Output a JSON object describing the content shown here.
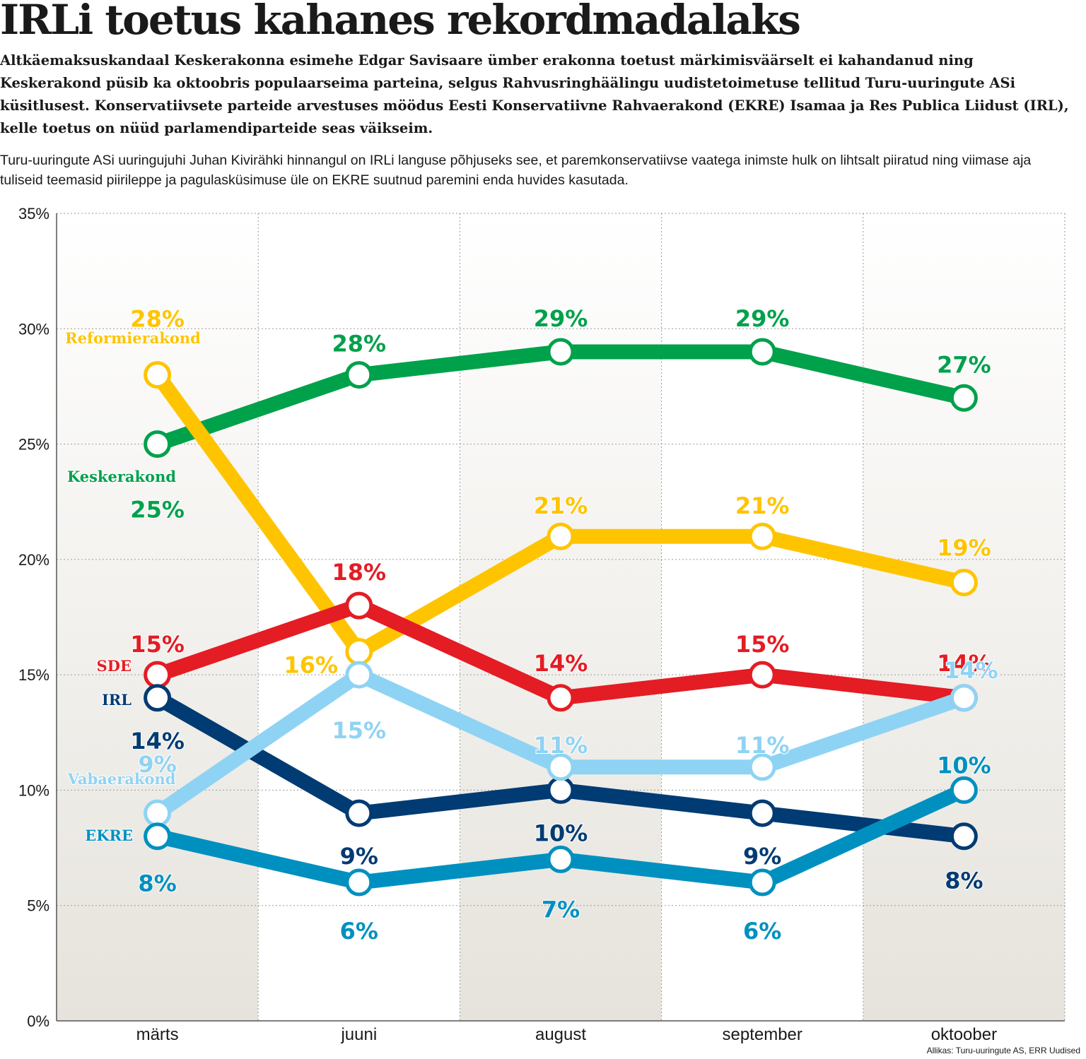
{
  "header": {
    "title": "IRLi toetus kahanes rekordmadalaks",
    "lead": "Altkäemaksuskandaal Keskerakonna esimehe Edgar Savisaare ümber erakonna toetust märkimisväärselt ei kahandanud ning Keskerakond püsib ka oktoobris populaarseima parteina, selgus Rahvusringhäälingu uudistetoimetuse tellitud Turu-uuringute ASi küsitlusest. Konservatiivsete parteide arvestuses möödus Eesti Konservatiivne Rahvaerakond (EKRE) Isamaa ja Res Publica Liidust (IRL), kelle toetus on nüüd parlamendiparteide seas väikseim.",
    "body": "Turu-uuringute ASi uuringujuhi Juhan Kivirähki hinnangul on IRLi languse põhjuseks see, et paremkonservatiivse vaatega inimste hulk on lihtsalt piiratud ning viimase aja tuliseid teemasid piirileppe ja pagulasküsimuse üle on EKRE suutnud paremini enda huvides kasutada."
  },
  "source": "Allikas: Turu-uuringute AS, ERR Uudised",
  "chart_data": {
    "type": "line",
    "categories": [
      "märts",
      "juuni",
      "august",
      "september",
      "oktoober"
    ],
    "ylim": [
      0,
      35
    ],
    "yticks": [
      "0%",
      "5%",
      "10%",
      "15%",
      "20%",
      "25%",
      "30%",
      "35%"
    ],
    "grid": true,
    "series": [
      {
        "name": "Keskerakond",
        "color": "#00a14b",
        "values": [
          25,
          28,
          29,
          29,
          27
        ],
        "labels": [
          "25%",
          "28%",
          "29%",
          "29%",
          "27%"
        ]
      },
      {
        "name": "Reformierakond",
        "color": "#ffc400",
        "values": [
          28,
          16,
          21,
          21,
          19
        ],
        "labels": [
          "28%",
          "16%",
          "21%",
          "21%",
          "19%"
        ]
      },
      {
        "name": "SDE",
        "color": "#e41c24",
        "values": [
          15,
          18,
          14,
          15,
          14
        ],
        "labels": [
          "15%",
          "18%",
          "14%",
          "15%",
          "14%"
        ]
      },
      {
        "name": "IRL",
        "color": "#003b73",
        "values": [
          14,
          9,
          10,
          9,
          8
        ],
        "labels": [
          "14%",
          "9%",
          "10%",
          "9%",
          "8%"
        ]
      },
      {
        "name": "Vabaerakond",
        "color": "#8fd3f4",
        "values": [
          9,
          15,
          11,
          11,
          14
        ],
        "labels": [
          "9%",
          "15%",
          "11%",
          "11%",
          "14%"
        ]
      },
      {
        "name": "EKRE",
        "color": "#0090c0",
        "values": [
          8,
          6,
          7,
          6,
          10
        ],
        "labels": [
          "8%",
          "6%",
          "7%",
          "6%",
          "10%"
        ]
      }
    ]
  }
}
